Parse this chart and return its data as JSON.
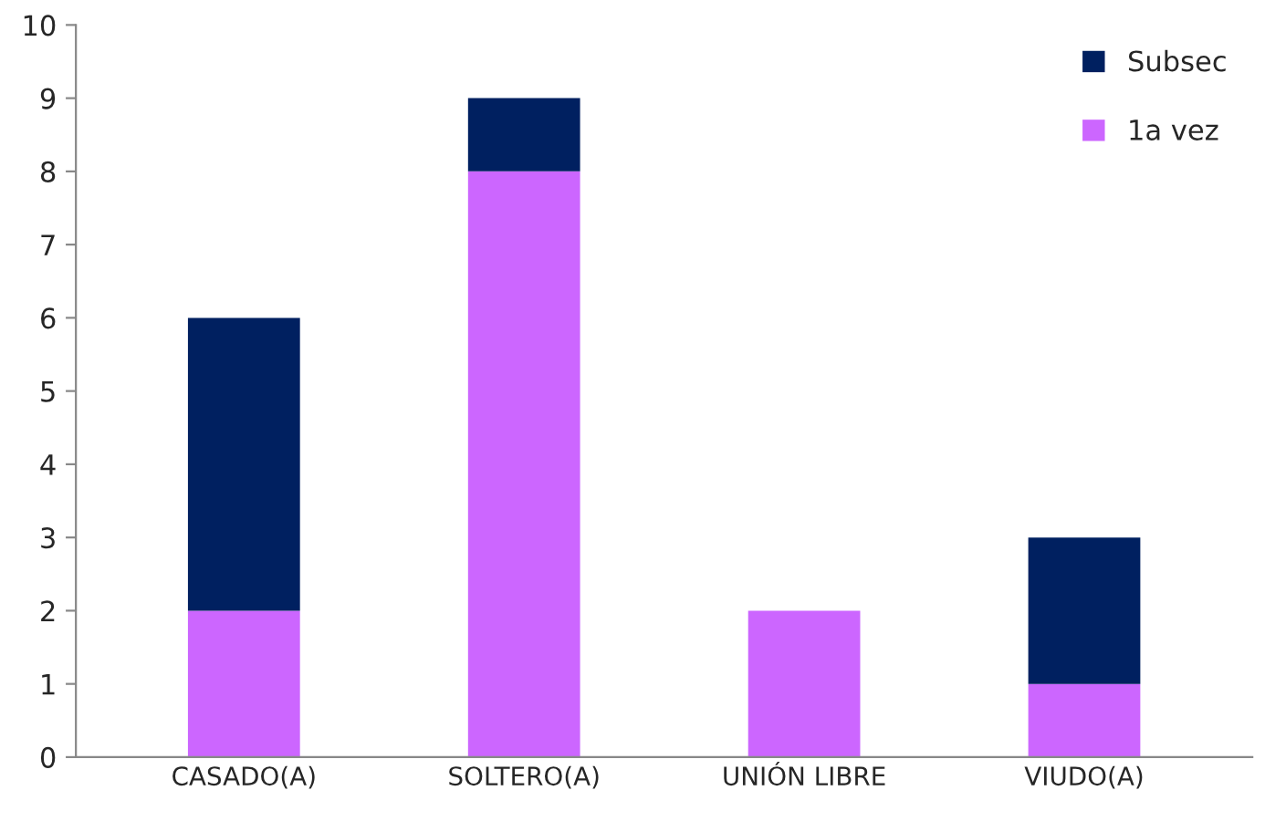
{
  "chart_data": {
    "type": "bar",
    "stacked": true,
    "categories": [
      "CASADO(A)",
      "SOLTERO(A)",
      "UNIÓN LIBRE",
      "VIUDO(A)"
    ],
    "series": [
      {
        "name": "1a vez",
        "color": "#cc66ff",
        "values": [
          2,
          8,
          2,
          1
        ]
      },
      {
        "name": "Subsec",
        "color": "#002060",
        "values": [
          4,
          1,
          null,
          2
        ]
      }
    ],
    "ylim": [
      0,
      10
    ],
    "yticks": [
      0,
      1,
      2,
      3,
      4,
      5,
      6,
      7,
      8,
      9,
      10
    ],
    "grid": false,
    "legend": "top right"
  }
}
